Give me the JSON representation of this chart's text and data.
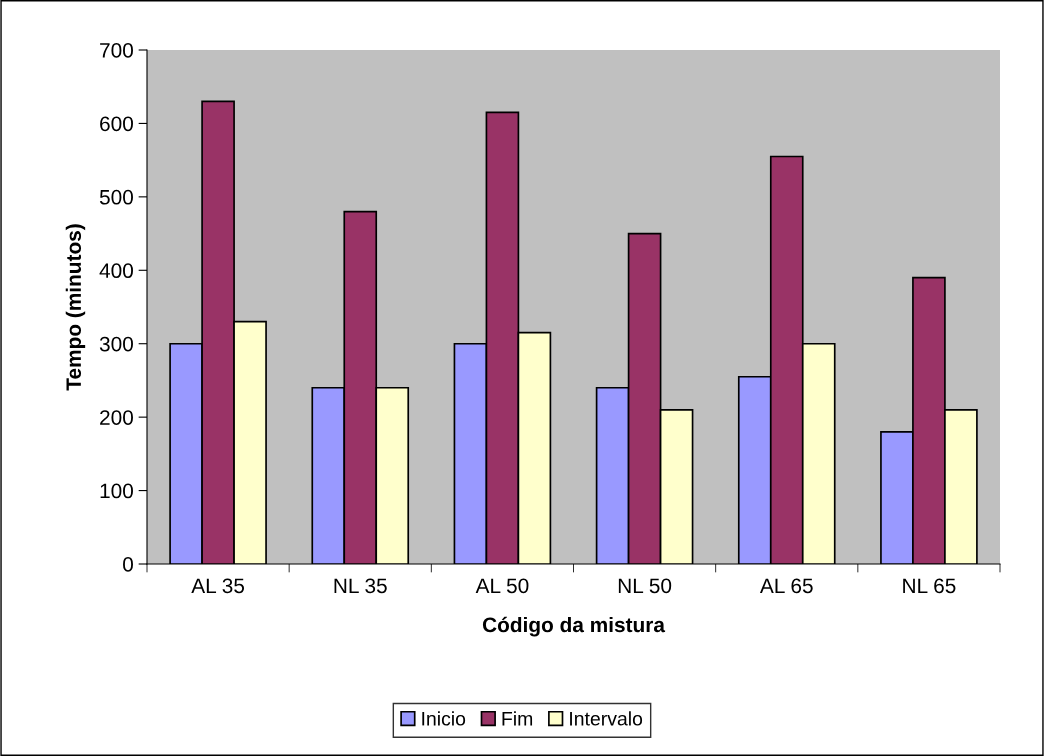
{
  "chart_data": {
    "type": "bar",
    "xlabel": "Código da mistura",
    "ylabel": "Tempo (minutos)",
    "categories": [
      "AL 35",
      "NL 35",
      "AL 50",
      "NL 50",
      "AL 65",
      "NL 65"
    ],
    "series": [
      {
        "name": "Inicio",
        "color": "#9999ff",
        "values": [
          300,
          240,
          300,
          240,
          255,
          180
        ]
      },
      {
        "name": "Fim",
        "color": "#993366",
        "values": [
          630,
          480,
          615,
          450,
          555,
          390
        ]
      },
      {
        "name": "Intervalo",
        "color": "#ffffcc",
        "values": [
          330,
          240,
          315,
          210,
          300,
          210
        ]
      }
    ],
    "ylim": [
      0,
      700
    ],
    "yticks": [
      0,
      100,
      200,
      300,
      400,
      500,
      600,
      700
    ],
    "grid": false,
    "legend": "bottom"
  }
}
